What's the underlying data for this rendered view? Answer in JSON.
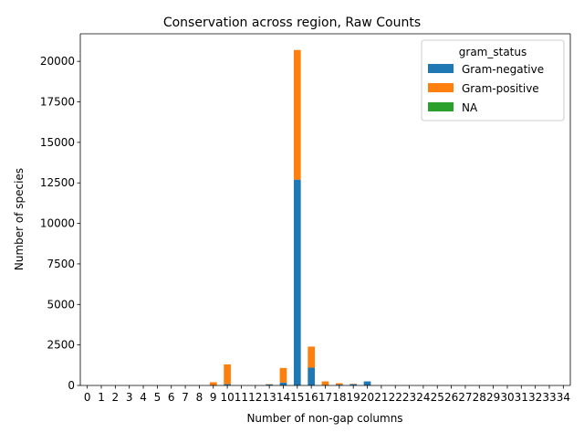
{
  "chart_data": {
    "type": "bar",
    "stacked": true,
    "title": "Conservation across region, Raw Counts",
    "xlabel": "Number of non-gap columns",
    "ylabel": "Number of species",
    "categories": [
      "0",
      "1",
      "2",
      "3",
      "4",
      "5",
      "6",
      "7",
      "8",
      "9",
      "10",
      "11",
      "12",
      "13",
      "14",
      "15",
      "16",
      "17",
      "18",
      "19",
      "20",
      "21",
      "22",
      "23",
      "24",
      "25",
      "26",
      "27",
      "28",
      "29",
      "30",
      "31",
      "32",
      "33",
      "34"
    ],
    "ylim": [
      0,
      21700
    ],
    "yticks": [
      0,
      2500,
      5000,
      7500,
      10000,
      12500,
      15000,
      17500,
      20000
    ],
    "ytick_labels": [
      "0",
      "2500",
      "5000",
      "7500",
      "10000",
      "12500",
      "15000",
      "17500",
      "20000"
    ],
    "legend": {
      "title": "gram_status",
      "placement": "top-right"
    },
    "grid": false,
    "series": [
      {
        "name": "Gram-negative",
        "color": "#1f77b4",
        "values": [
          0,
          0,
          0,
          0,
          0,
          0,
          0,
          0,
          0,
          10,
          80,
          0,
          0,
          60,
          180,
          12700,
          1100,
          30,
          50,
          80,
          250,
          0,
          0,
          0,
          0,
          0,
          0,
          0,
          0,
          0,
          0,
          0,
          0,
          0,
          0
        ]
      },
      {
        "name": "Gram-positive",
        "color": "#ff7f0e",
        "values": [
          0,
          0,
          0,
          0,
          0,
          0,
          0,
          0,
          0,
          190,
          1220,
          0,
          0,
          20,
          900,
          8000,
          1300,
          220,
          90,
          20,
          0,
          0,
          0,
          0,
          0,
          0,
          0,
          0,
          0,
          0,
          0,
          0,
          0,
          0,
          0
        ]
      },
      {
        "name": "NA",
        "color": "#2ca02c",
        "values": [
          0,
          0,
          0,
          0,
          0,
          0,
          0,
          0,
          0,
          0,
          0,
          0,
          0,
          0,
          0,
          0,
          0,
          0,
          0,
          0,
          0,
          0,
          0,
          0,
          0,
          0,
          0,
          0,
          0,
          0,
          0,
          0,
          0,
          0,
          0
        ]
      }
    ]
  }
}
